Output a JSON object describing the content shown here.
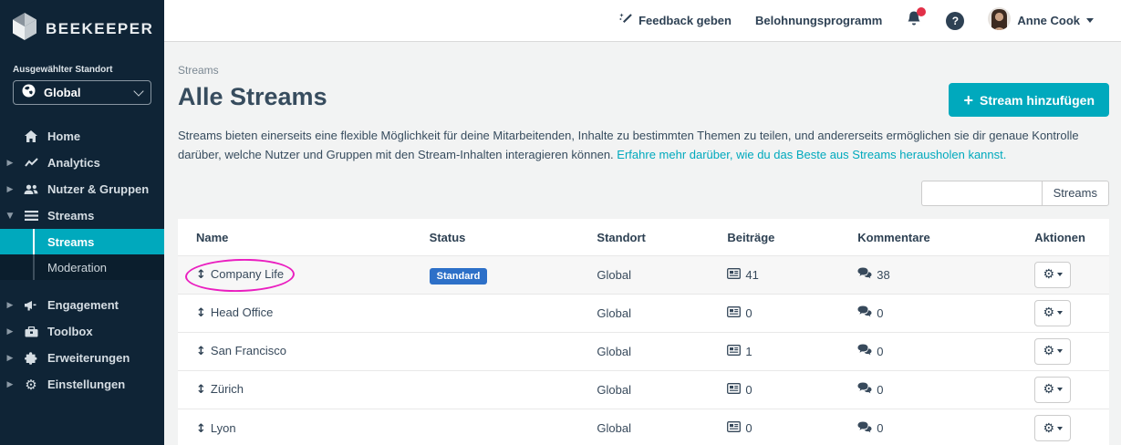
{
  "brand": {
    "name": "BEEKEEPER"
  },
  "colors": {
    "sidebar_bg": "#0f2436",
    "subnav_bg": "#0b1e2d",
    "accent_teal": "#00a9bd",
    "badge_blue": "#2d70c8",
    "notification_red": "#e23048",
    "annotation_pink": "#ea1fc0",
    "text_navy": "#2e4154",
    "page_bg": "#f2f3f3"
  },
  "sidebar": {
    "selected_location_label": "Ausgewählter Standort",
    "location": {
      "value": "Global",
      "icon": "globe-icon"
    },
    "items": [
      {
        "label": "Home",
        "icon": "home-icon"
      },
      {
        "label": "Analytics",
        "icon": "line-chart-icon"
      },
      {
        "label": "Nutzer & Gruppen",
        "icon": "users-icon"
      },
      {
        "label": "Streams",
        "icon": "streams-icon",
        "expanded": true
      },
      {
        "label": "Engagement",
        "icon": "megaphone-icon"
      },
      {
        "label": "Toolbox",
        "icon": "toolbox-icon"
      },
      {
        "label": "Erweiterungen",
        "icon": "puzzle-icon"
      },
      {
        "label": "Einstellungen",
        "icon": "gear-icon"
      }
    ],
    "streams_children": [
      {
        "label": "Streams",
        "active": true
      },
      {
        "label": "Moderation",
        "active": false
      }
    ]
  },
  "topbar": {
    "feedback_label": "Feedback geben",
    "rewards_label": "Belohnungsprogramm",
    "user_name": "Anne Cook",
    "help_glyph": "?",
    "has_unread_notification": true
  },
  "page": {
    "breadcrumb": "Streams",
    "title": "Alle Streams",
    "description": "Streams bieten einerseits eine flexible Möglichkeit für deine Mitarbeitenden, Inhalte zu bestimmten Themen zu teilen, und andererseits ermöglichen sie dir genaue Kontrolle darüber, welche Nutzer und Gruppen mit den Stream-Inhalten interagieren können. ",
    "description_link": "Erfahre mehr darüber, wie du das Beste aus Streams herausholen kannst.",
    "add_button_plus": "+",
    "add_button_label": "Stream hinzufügen",
    "search": {
      "value": "",
      "addon_label": "Streams"
    }
  },
  "table": {
    "columns": {
      "name": "Name",
      "status": "Status",
      "standort": "Standort",
      "beitraege": "Beiträge",
      "kommentare": "Kommentare",
      "aktionen": "Aktionen"
    },
    "drag_handle_glyph": "↕",
    "rows": [
      {
        "name": "Company Life",
        "status": "Standard",
        "standort": "Global",
        "beitraege": "41",
        "kommentare": "38",
        "annotated": true
      },
      {
        "name": "Head Office",
        "status": "",
        "standort": "Global",
        "beitraege": "0",
        "kommentare": "0"
      },
      {
        "name": "San Francisco",
        "status": "",
        "standort": "Global",
        "beitraege": "1",
        "kommentare": "0"
      },
      {
        "name": "Zürich",
        "status": "",
        "standort": "Global",
        "beitraege": "0",
        "kommentare": "0"
      },
      {
        "name": "Lyon",
        "status": "",
        "standort": "Global",
        "beitraege": "0",
        "kommentare": "0"
      }
    ]
  }
}
